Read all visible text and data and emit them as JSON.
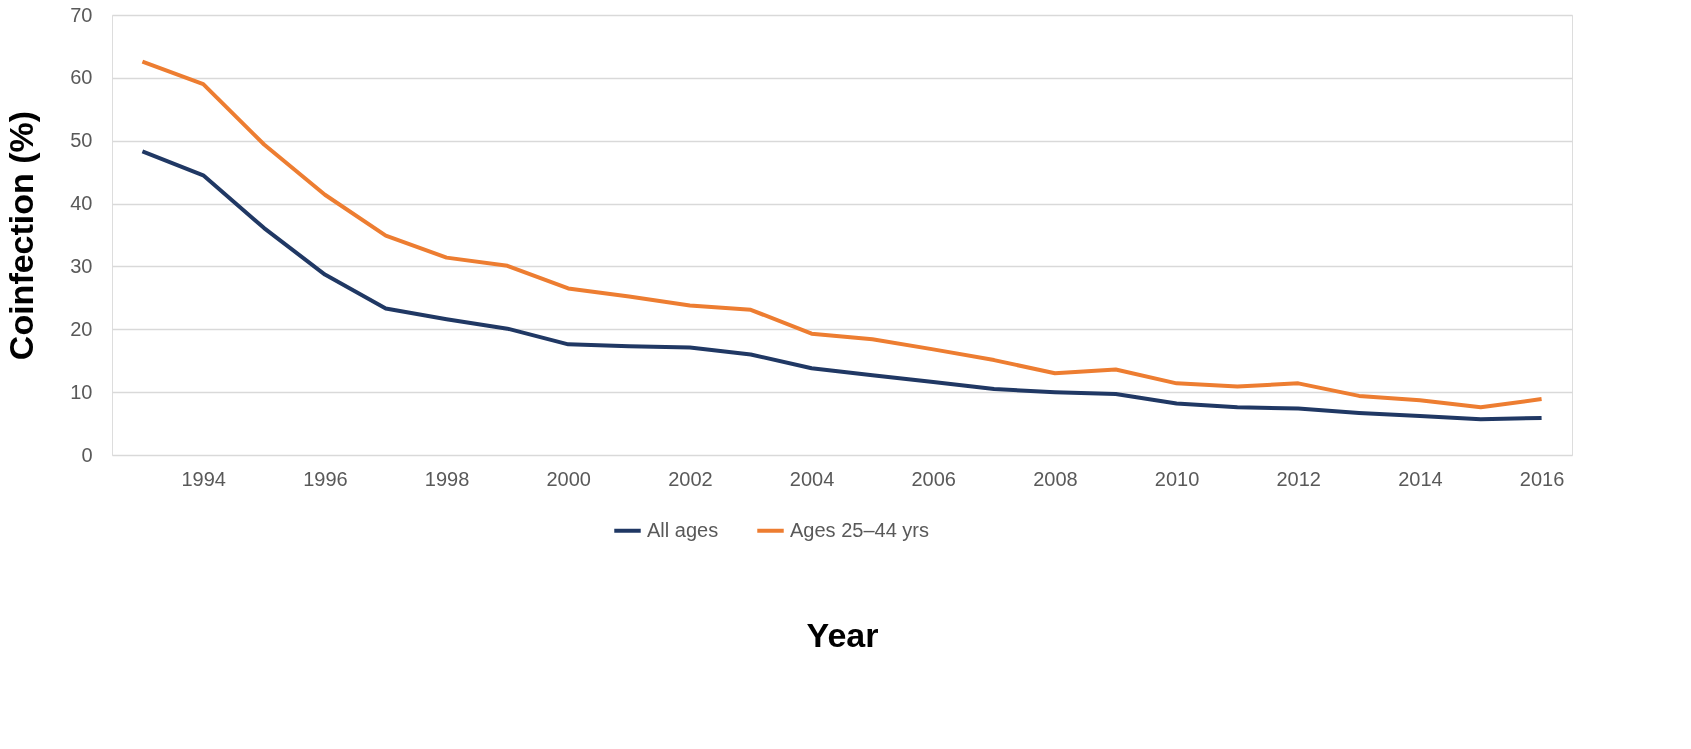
{
  "chart_data": {
    "type": "line",
    "xlabel": "Year",
    "ylabel": "Coinfection (%)",
    "x": [
      1993,
      1994,
      1995,
      1996,
      1997,
      1998,
      1999,
      2000,
      2001,
      2002,
      2003,
      2004,
      2005,
      2006,
      2007,
      2008,
      2009,
      2010,
      2011,
      2012,
      2013,
      2014,
      2015,
      2016
    ],
    "series": [
      {
        "name": "All ages",
        "color": "#203864",
        "values": [
          48.3,
          44.5,
          36.1,
          28.7,
          23.3,
          21.6,
          20.1,
          17.6,
          17.3,
          17.1,
          16.0,
          13.8,
          12.7,
          11.6,
          10.5,
          10.0,
          9.7,
          8.2,
          7.6,
          7.4,
          6.7,
          6.2,
          5.7,
          5.9
        ]
      },
      {
        "name": "Ages 25–44 yrs",
        "color": "#ed7d31",
        "values": [
          62.6,
          59.0,
          49.4,
          41.4,
          34.9,
          31.4,
          30.1,
          26.5,
          25.2,
          23.8,
          23.1,
          19.3,
          18.4,
          16.8,
          15.1,
          13.0,
          13.6,
          11.4,
          10.9,
          11.4,
          9.4,
          8.7,
          7.6,
          8.9
        ]
      }
    ],
    "xlim": [
      1992.5,
      2016.5
    ],
    "xticks": [
      1994,
      1996,
      1998,
      2000,
      2002,
      2004,
      2006,
      2008,
      2010,
      2012,
      2014,
      2016
    ],
    "ylim": [
      0,
      70
    ],
    "yticks": [
      0,
      10,
      20,
      30,
      40,
      50,
      60,
      70
    ],
    "grid": "y",
    "legend": "bottom",
    "marker": "none",
    "line_style": "solid"
  }
}
